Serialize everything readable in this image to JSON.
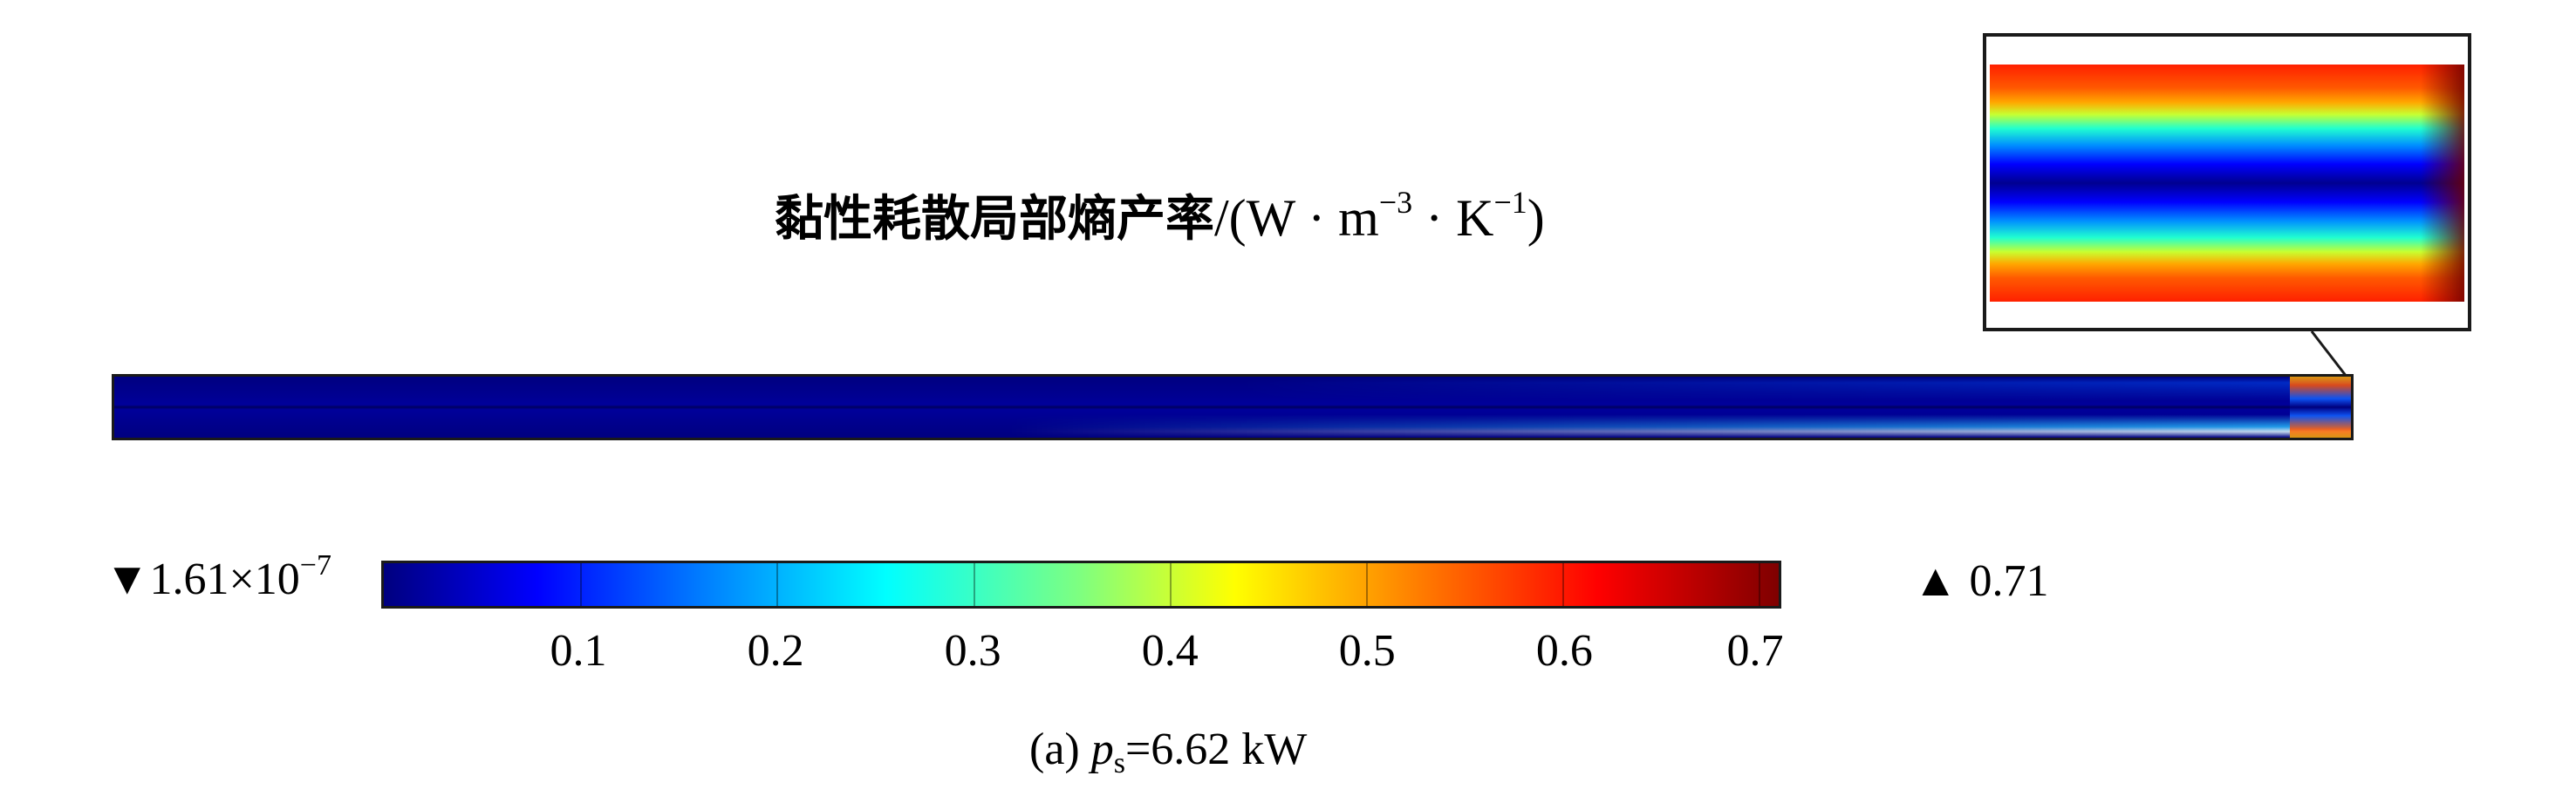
{
  "title": {
    "cn": "黏性耗散局部熵产率",
    "unit_prefix": "/(W · m",
    "exp1": "−3",
    "unit_mid": " · K",
    "exp2": "−1",
    "unit_suffix": ")"
  },
  "colorbar": {
    "min_marker": "▼",
    "min_label": "1.61×10",
    "min_exp": "−7",
    "max_marker": "▲",
    "max_label": "0.71",
    "colormap": "jet",
    "ticks": [
      "0.1",
      "0.2",
      "0.3",
      "0.4",
      "0.5",
      "0.6",
      "0.7"
    ],
    "tick_values": [
      0.1,
      0.2,
      0.3,
      0.4,
      0.5,
      0.6,
      0.7
    ],
    "range": [
      0.0,
      0.71
    ]
  },
  "caption": {
    "prefix": "(a) ",
    "var": "p",
    "sub": "s",
    "rest": "=6.62 kW"
  }
}
